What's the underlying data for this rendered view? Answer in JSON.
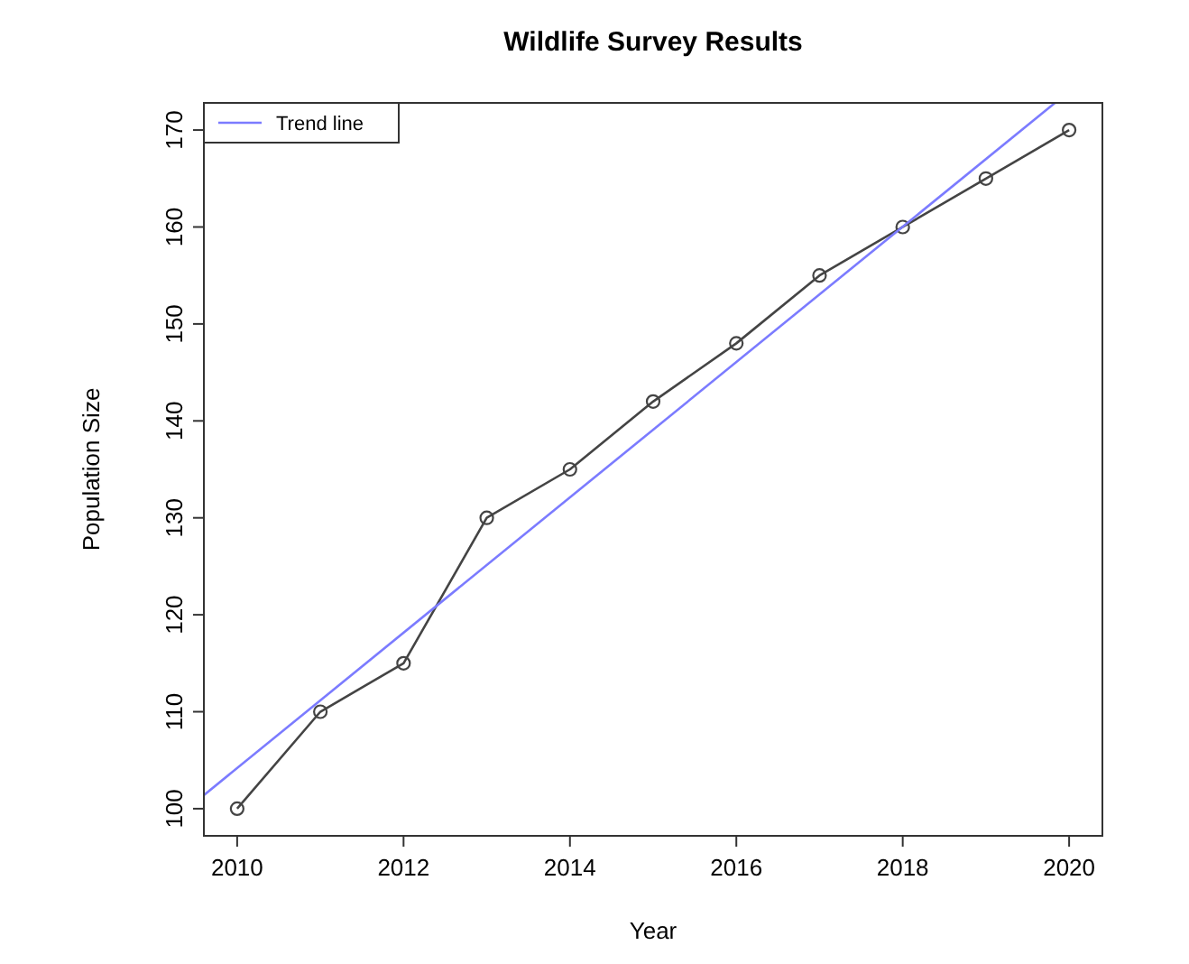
{
  "chart_data": {
    "type": "line",
    "title": "Wildlife Survey Results",
    "xlabel": "Year",
    "ylabel": "Population Size",
    "x": [
      2010,
      2011,
      2012,
      2013,
      2014,
      2015,
      2016,
      2017,
      2018,
      2019,
      2020
    ],
    "series": [
      {
        "color": "#444444",
        "values": [
          100,
          110,
          115,
          130,
          135,
          142,
          148,
          155,
          160,
          165,
          170
        ],
        "marker": "circle"
      },
      {
        "name": "Trend line",
        "type": "line",
        "color": "#7b7bff",
        "x": [
          2009.6,
          2019.83
        ],
        "values": [
          101.4,
          172.8
        ],
        "marker": "none"
      }
    ],
    "xlim": [
      2009.6,
      2020.4
    ],
    "ylim": [
      97.2,
      172.8
    ],
    "xticks": [
      2010,
      2012,
      2014,
      2016,
      2018,
      2020
    ],
    "yticks": [
      100,
      110,
      120,
      130,
      140,
      150,
      160,
      170
    ],
    "legend": "top left",
    "grid": false
  }
}
